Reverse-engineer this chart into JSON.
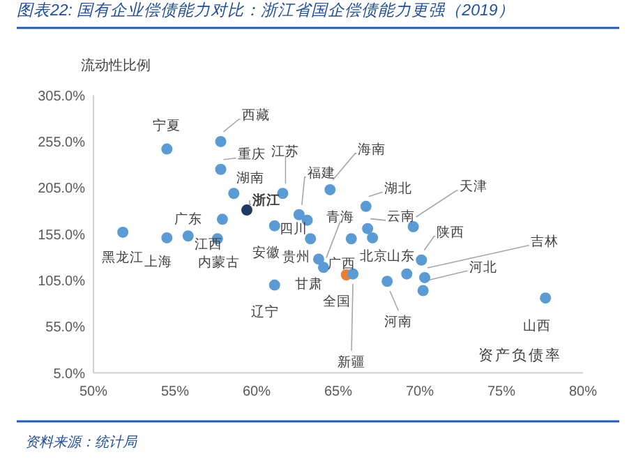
{
  "chart_data": {
    "type": "scatter",
    "title": "图表22:  国有企业偿债能力对比：浙江省国企偿债能力更强（2019）",
    "xlabel": "资产负债率",
    "ylabel": "流动性比例",
    "marker": "circle",
    "grid": false,
    "xlim": [
      50,
      80
    ],
    "ylim": [
      5,
      305
    ],
    "xticks": [
      {
        "value": 50,
        "label": "50%"
      },
      {
        "value": 55,
        "label": "55%"
      },
      {
        "value": 60,
        "label": "60%"
      },
      {
        "value": 65,
        "label": "65%"
      },
      {
        "value": 70,
        "label": "70%"
      },
      {
        "value": 75,
        "label": "75%"
      },
      {
        "value": 80,
        "label": "80%"
      }
    ],
    "yticks": [
      {
        "value": 5,
        "label": "5.0%"
      },
      {
        "value": 55,
        "label": "55.0%"
      },
      {
        "value": 105,
        "label": "105.0%"
      },
      {
        "value": 155,
        "label": "155.0%"
      },
      {
        "value": 205,
        "label": "205.0%"
      },
      {
        "value": 255,
        "label": "255.0%"
      },
      {
        "value": 305,
        "label": "305.0%"
      }
    ],
    "x": [
      54.5,
      57.8,
      57.8,
      58.6,
      59.4,
      61.6,
      62.6,
      64.5,
      51.8,
      54.5,
      55.8,
      57.9,
      57.6,
      61.1,
      63.1,
      63.3,
      63.8,
      64.1,
      61.1,
      65.5,
      65.9,
      65.8,
      66.7,
      66.8,
      67.1,
      69.6,
      70.1,
      69.2,
      70.3,
      70.2,
      68.0,
      77.7
    ],
    "values": [
      247,
      255,
      225,
      199,
      181,
      199,
      176,
      203,
      157,
      151,
      153,
      171,
      150,
      164,
      170,
      150,
      128,
      119,
      100,
      111,
      112,
      150,
      185,
      161,
      151,
      163,
      127,
      112,
      108,
      94,
      104,
      86
    ],
    "colors": [
      "#5b9bd5",
      "#5b9bd5",
      "#5b9bd5",
      "#5b9bd5",
      "#203864",
      "#5b9bd5",
      "#5b9bd5",
      "#5b9bd5",
      "#5b9bd5",
      "#5b9bd5",
      "#5b9bd5",
      "#5b9bd5",
      "#5b9bd5",
      "#5b9bd5",
      "#5b9bd5",
      "#5b9bd5",
      "#5b9bd5",
      "#5b9bd5",
      "#5b9bd5",
      "#ed7d31",
      "#5b9bd5",
      "#5b9bd5",
      "#5b9bd5",
      "#5b9bd5",
      "#5b9bd5",
      "#5b9bd5",
      "#5b9bd5",
      "#5b9bd5",
      "#5b9bd5",
      "#5b9bd5",
      "#5b9bd5",
      "#5b9bd5"
    ],
    "annotations": [
      {
        "text": "宁夏",
        "x": 54.5,
        "y": 247
      },
      {
        "text": "西藏",
        "x": 57.8,
        "y": 255
      },
      {
        "text": "重庆",
        "x": 57.8,
        "y": 225
      },
      {
        "text": "湖南",
        "x": 58.6,
        "y": 199
      },
      {
        "text": "**浙江**",
        "x": 59.4,
        "y": 181
      },
      {
        "text": "江苏",
        "x": 61.6,
        "y": 199
      },
      {
        "text": "福建",
        "x": 62.6,
        "y": 176
      },
      {
        "text": "海南",
        "x": 64.5,
        "y": 203
      },
      {
        "text": "黑龙江",
        "x": 51.8,
        "y": 157
      },
      {
        "text": "上海",
        "x": 54.5,
        "y": 151
      },
      {
        "text": "广东",
        "x": 55.8,
        "y": 153
      },
      {
        "text": "江西",
        "x": 57.9,
        "y": 171
      },
      {
        "text": "内蒙古",
        "x": 57.6,
        "y": 150
      },
      {
        "text": "安徽",
        "x": 61.1,
        "y": 164
      },
      {
        "text": "四川",
        "x": 63.1,
        "y": 170
      },
      {
        "text": "贵州",
        "x": 63.3,
        "y": 150
      },
      {
        "text": "甘肃",
        "x": 63.8,
        "y": 128
      },
      {
        "text": "青海",
        "x": 64.1,
        "y": 119
      },
      {
        "text": "辽宁",
        "x": 61.1,
        "y": 100
      },
      {
        "text": "全国",
        "x": 65.5,
        "y": 111
      },
      {
        "text": "新疆",
        "x": 65.9,
        "y": 112
      },
      {
        "text": "广西",
        "x": 65.8,
        "y": 150
      },
      {
        "text": "湖北",
        "x": 66.7,
        "y": 185
      },
      {
        "text": "云南",
        "x": 66.8,
        "y": 161
      },
      {
        "text": "北京",
        "x": 67.1,
        "y": 151
      },
      {
        "text": "天津",
        "x": 69.6,
        "y": 163
      },
      {
        "text": "陕西",
        "x": 70.1,
        "y": 127
      },
      {
        "text": "山东",
        "x": 69.2,
        "y": 112
      },
      {
        "text": "吉林",
        "x": 70.3,
        "y": 108
      },
      {
        "text": "河北",
        "x": 70.2,
        "y": 94
      },
      {
        "text": "河南",
        "x": 68.0,
        "y": 104
      },
      {
        "text": "山西",
        "x": 77.7,
        "y": 86
      },
      "资料来源：统计局"
    ]
  }
}
